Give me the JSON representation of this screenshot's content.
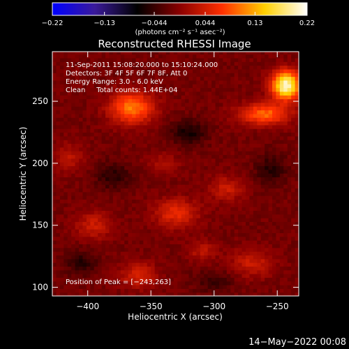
{
  "chart_data": {
    "type": "heatmap",
    "title": "Reconstructed RHESSI Image",
    "xlabel": "Heliocentric X (arcsec)",
    "ylabel": "Heliocentric Y (arcsec)",
    "xlim": [
      -428,
      -233
    ],
    "ylim": [
      93,
      290
    ],
    "x_ticks": [
      -400,
      -350,
      -300,
      -250
    ],
    "x_tick_labels": [
      "−400",
      "−350",
      "−300",
      "−250"
    ],
    "y_ticks": [
      100,
      150,
      200,
      250
    ],
    "y_tick_labels": [
      "100",
      "150",
      "200",
      "250"
    ],
    "colorbar": {
      "range": [
        -0.22,
        0.22
      ],
      "ticks": [
        -0.22,
        -0.13,
        -0.044,
        0.044,
        0.13,
        0.22
      ],
      "tick_labels": [
        "−0.22",
        "−0.13",
        "−0.044",
        "0.044",
        "0.13",
        "0.22"
      ],
      "units": "(photons cm⁻² s⁻¹ asec⁻²)",
      "colors": [
        "#0000ff",
        "#3a1a9a",
        "#000000",
        "#8a0000",
        "#ff3000",
        "#ffd000",
        "#ffffff"
      ]
    },
    "annotations": [
      "11-Sep-2011 15:08:20.000 to 15:10:24.000",
      "Detectors: 3F 4F 5F 6F 7F 8F, Att 0",
      "Energy Range: 3.0 - 6.0 keV",
      "Clean     Total counts: 1.44E+04"
    ],
    "peak_label": "Position of Peak = [−243,263]",
    "peak": {
      "x": -243,
      "y": 263,
      "value": 0.22
    },
    "sources": [
      {
        "x": -243,
        "y": 263,
        "sx": 8,
        "sy": 8,
        "value": 0.22
      },
      {
        "x": -260,
        "y": 240,
        "sx": 14,
        "sy": 6,
        "value": 0.11
      },
      {
        "x": -365,
        "y": 245,
        "sx": 12,
        "sy": 9,
        "value": 0.12
      },
      {
        "x": -330,
        "y": 160,
        "sx": 12,
        "sy": 8,
        "value": 0.07
      },
      {
        "x": -395,
        "y": 150,
        "sx": 10,
        "sy": 8,
        "value": 0.05
      },
      {
        "x": -290,
        "y": 180,
        "sx": 10,
        "sy": 7,
        "value": 0.05
      },
      {
        "x": -270,
        "y": 120,
        "sx": 12,
        "sy": 8,
        "value": 0.05
      },
      {
        "x": -360,
        "y": 110,
        "sx": 10,
        "sy": 7,
        "value": 0.06
      },
      {
        "x": -415,
        "y": 205,
        "sx": 8,
        "sy": 8,
        "value": 0.04
      },
      {
        "x": -340,
        "y": 200,
        "sx": 9,
        "sy": 6,
        "value": 0.03
      },
      {
        "x": -310,
        "y": 130,
        "sx": 8,
        "sy": 6,
        "value": 0.04
      },
      {
        "x": -320,
        "y": 225,
        "sx": 10,
        "sy": 7,
        "value": -0.05
      },
      {
        "x": -380,
        "y": 190,
        "sx": 10,
        "sy": 8,
        "value": -0.04
      },
      {
        "x": -255,
        "y": 195,
        "sx": 9,
        "sy": 9,
        "value": -0.04
      },
      {
        "x": -300,
        "y": 105,
        "sx": 12,
        "sy": 6,
        "value": -0.03
      },
      {
        "x": -405,
        "y": 120,
        "sx": 9,
        "sy": 7,
        "value": -0.04
      }
    ]
  },
  "footer": {
    "date": "14−May−2022 00:08"
  }
}
